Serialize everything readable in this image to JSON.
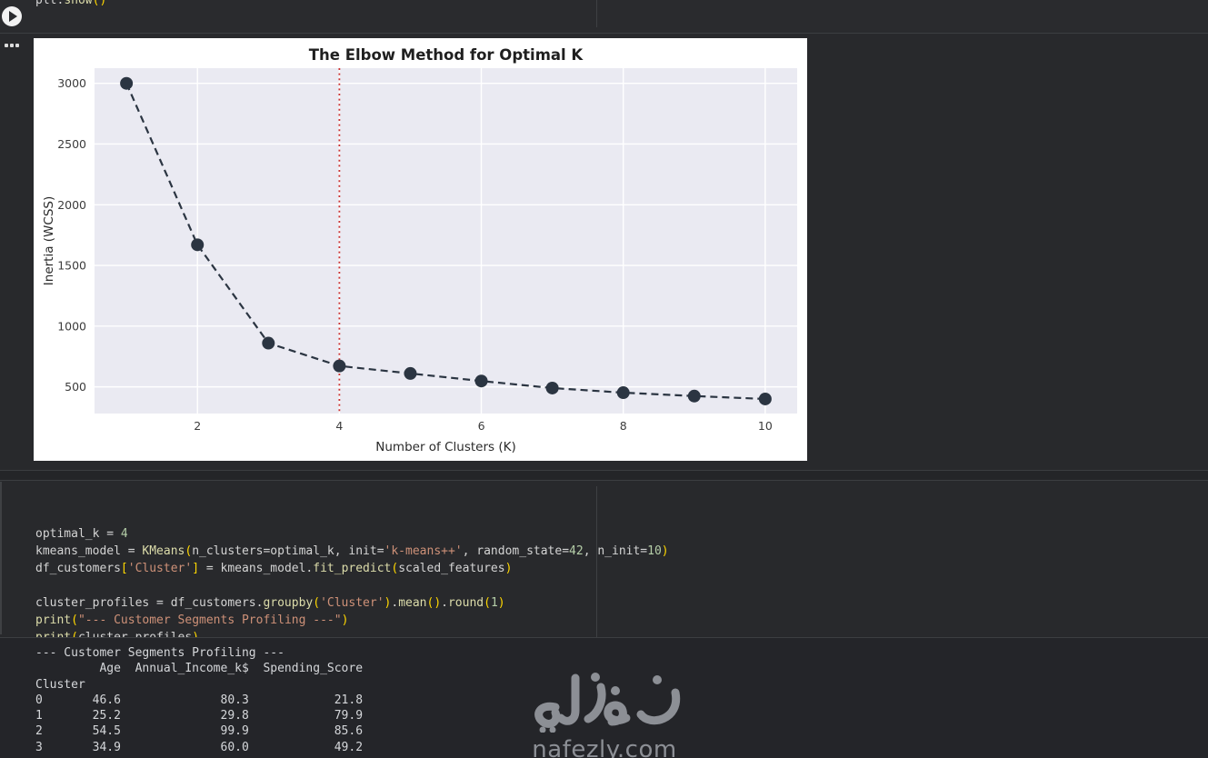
{
  "colors": {
    "page_bg": "#28292c",
    "chart_bg": "#ffffff",
    "plot_bg": "#eaeaf2",
    "code_default": "#d4d4d4",
    "code_function": "#dcdcaa",
    "code_string": "#ce9178",
    "code_number": "#b5cea8",
    "code_bracket": "#ffd700",
    "marker_color": "#2b3542",
    "vline_red": "#cc3333",
    "watermark_gray": "#8c8f95"
  },
  "top_cell": {
    "run_button_icon": "play-icon",
    "code_tokens": [
      {
        "t": "plt.",
        "c": "id"
      },
      {
        "t": "show",
        "c": "fn"
      },
      {
        "t": "()",
        "c": "br"
      }
    ]
  },
  "chart_cell": {
    "menu_icon": "ellipsis-icon"
  },
  "chart_data": {
    "type": "line",
    "title": "The Elbow Method for Optimal K",
    "xlabel": "Number of Clusters (K)",
    "ylabel": "Inertia (WCSS)",
    "series": [
      {
        "name": "Inertia (WCSS)",
        "x": [
          1,
          2,
          3,
          4,
          5,
          6,
          7,
          8,
          9,
          10
        ],
        "values": [
          3000,
          1670,
          860,
          672,
          610,
          548,
          490,
          452,
          424,
          400
        ],
        "line_style": "dashed",
        "marker": "circle",
        "color": "#2b3542"
      }
    ],
    "annotation_vline": {
      "x": 4,
      "style": "dotted",
      "color": "#cc3333",
      "meaning": "optimal k"
    },
    "xticks": [
      2,
      4,
      6,
      8,
      10
    ],
    "yticks": [
      500,
      1000,
      1500,
      2000,
      2500,
      3000
    ],
    "xlim": [
      0.55,
      10.45
    ],
    "ylim": [
      280,
      3125
    ],
    "grid": true,
    "legend": "none",
    "plot_bg": "#eaeaf2",
    "fig_bg": "#ffffff"
  },
  "code_cell": {
    "lines": [
      [
        {
          "t": "optimal_k = ",
          "c": "id"
        },
        {
          "t": "4",
          "c": "num"
        }
      ],
      [
        {
          "t": "kmeans_model = ",
          "c": "id"
        },
        {
          "t": "KMeans",
          "c": "fn"
        },
        {
          "t": "(",
          "c": "br"
        },
        {
          "t": "n_clusters=optimal_k, init=",
          "c": "id"
        },
        {
          "t": "'k-means++'",
          "c": "str"
        },
        {
          "t": ", random_state=",
          "c": "id"
        },
        {
          "t": "42",
          "c": "num"
        },
        {
          "t": ", n_init=",
          "c": "id"
        },
        {
          "t": "10",
          "c": "num"
        },
        {
          "t": ")",
          "c": "br"
        }
      ],
      [
        {
          "t": "df_customers",
          "c": "id"
        },
        {
          "t": "[",
          "c": "br"
        },
        {
          "t": "'Cluster'",
          "c": "str"
        },
        {
          "t": "]",
          "c": "br"
        },
        {
          "t": " = kmeans_model.",
          "c": "id"
        },
        {
          "t": "fit_predict",
          "c": "fn"
        },
        {
          "t": "(",
          "c": "br"
        },
        {
          "t": "scaled_features",
          "c": "id"
        },
        {
          "t": ")",
          "c": "br"
        }
      ],
      [],
      [
        {
          "t": "cluster_profiles = df_customers.",
          "c": "id"
        },
        {
          "t": "groupby",
          "c": "fn"
        },
        {
          "t": "(",
          "c": "br"
        },
        {
          "t": "'Cluster'",
          "c": "str"
        },
        {
          "t": ")",
          "c": "br"
        },
        {
          "t": ".",
          "c": "id"
        },
        {
          "t": "mean",
          "c": "fn"
        },
        {
          "t": "()",
          "c": "br"
        },
        {
          "t": ".",
          "c": "id"
        },
        {
          "t": "round",
          "c": "fn"
        },
        {
          "t": "(",
          "c": "br"
        },
        {
          "t": "1",
          "c": "num"
        },
        {
          "t": ")",
          "c": "br"
        }
      ],
      [
        {
          "t": "print",
          "c": "fn"
        },
        {
          "t": "(",
          "c": "br"
        },
        {
          "t": "\"--- Customer Segments Profiling ---\"",
          "c": "str"
        },
        {
          "t": ")",
          "c": "br"
        }
      ],
      [
        {
          "t": "print",
          "c": "fn"
        },
        {
          "t": "(",
          "c": "br"
        },
        {
          "t": "cluster_profiles",
          "c": "id"
        },
        {
          "t": ")",
          "c": "br"
        }
      ]
    ]
  },
  "output": {
    "text": "--- Customer Segments Profiling ---\n         Age  Annual_Income_k$  Spending_Score\nCluster\n0       46.6              80.3            21.8\n1       25.2              29.8            79.9\n2       54.5              99.9            85.6\n3       34.9              60.0            49.2",
    "table": {
      "title": "--- Customer Segments Profiling ---",
      "index_label": "Cluster",
      "columns": [
        "Age",
        "Annual_Income_k$",
        "Spending_Score"
      ],
      "rows": [
        [
          0,
          46.6,
          80.3,
          21.8
        ],
        [
          1,
          25.2,
          29.8,
          79.9
        ],
        [
          2,
          54.5,
          99.9,
          85.6
        ],
        [
          3,
          34.9,
          60.0,
          49.2
        ]
      ]
    }
  },
  "watermark": {
    "arabic": "نفذلي",
    "domain": "nafezly.com"
  }
}
